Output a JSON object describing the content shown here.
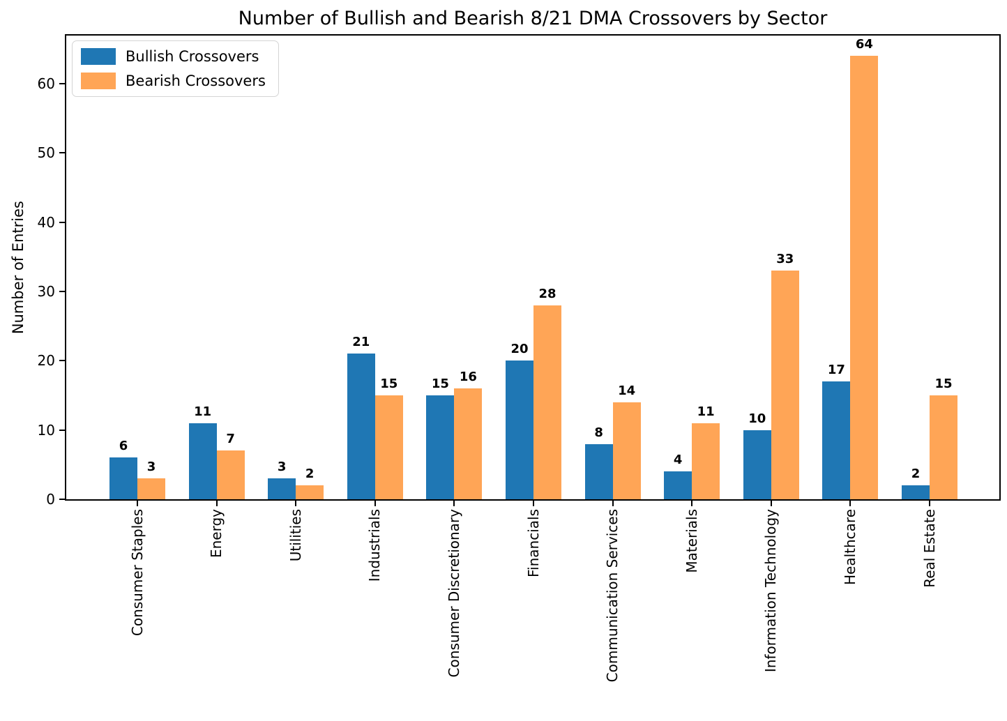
{
  "chart_data": {
    "type": "bar",
    "title": "Number of Bullish and Bearish 8/21 DMA Crossovers by Sector",
    "xlabel": "",
    "ylabel": "Number of Entries",
    "categories": [
      "Consumer Staples",
      "Energy",
      "Utilities",
      "Industrials",
      "Consumer Discretionary",
      "Financials",
      "Communication Services",
      "Materials",
      "Information Technology",
      "Healthcare",
      "Real Estate"
    ],
    "series": [
      {
        "name": "Bullish Crossovers",
        "color": "#1f77b4",
        "values": [
          6,
          11,
          3,
          21,
          15,
          20,
          8,
          4,
          10,
          17,
          2
        ]
      },
      {
        "name": "Bearish Crossovers",
        "color": "#ffa556",
        "values": [
          3,
          7,
          2,
          15,
          16,
          28,
          14,
          11,
          33,
          64,
          15
        ]
      }
    ],
    "ylim": [
      0,
      66.95
    ],
    "yticks": [
      0,
      10,
      20,
      30,
      40,
      50,
      60
    ],
    "grid": false,
    "legend_position": "upper left",
    "bar_value_labels": true,
    "axis_color": "#000000",
    "background_color": "#ffffff"
  }
}
